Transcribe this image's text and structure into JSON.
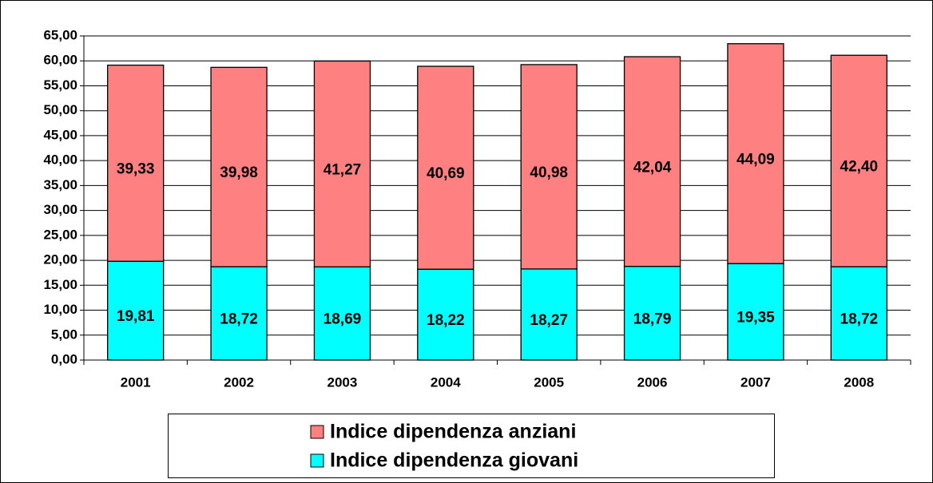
{
  "chart_data": {
    "type": "stacked_bar",
    "categories": [
      "2001",
      "2002",
      "2003",
      "2004",
      "2005",
      "2006",
      "2007",
      "2008"
    ],
    "series": [
      {
        "name": "Indice dipendenza giovani",
        "color": "#00ffff",
        "values": [
          19.81,
          18.72,
          18.69,
          18.22,
          18.27,
          18.79,
          19.35,
          18.72
        ],
        "value_labels": [
          "19,81",
          "18,72",
          "18,69",
          "18,22",
          "18,27",
          "18,79",
          "19,35",
          "18,72"
        ]
      },
      {
        "name": "Indice dipendenza anziani",
        "color": "#ff8080",
        "values": [
          39.33,
          39.98,
          41.27,
          40.69,
          40.98,
          42.04,
          44.09,
          42.4
        ],
        "value_labels": [
          "39,33",
          "39,98",
          "41,27",
          "40,69",
          "40,98",
          "42,04",
          "44,09",
          "42,40"
        ]
      }
    ],
    "ylim": [
      0,
      65
    ],
    "yticks": [
      {
        "value": 0,
        "label": "0,00"
      },
      {
        "value": 5,
        "label": "5,00"
      },
      {
        "value": 10,
        "label": "10,00"
      },
      {
        "value": 15,
        "label": "15,00"
      },
      {
        "value": 20,
        "label": "20,00"
      },
      {
        "value": 25,
        "label": "25,00"
      },
      {
        "value": 30,
        "label": "30,00"
      },
      {
        "value": 35,
        "label": "35,00"
      },
      {
        "value": 40,
        "label": "40,00"
      },
      {
        "value": 45,
        "label": "45,00"
      },
      {
        "value": 50,
        "label": "50,00"
      },
      {
        "value": 55,
        "label": "55,00"
      },
      {
        "value": 60,
        "label": "60,00"
      },
      {
        "value": 65,
        "label": "65,00"
      }
    ],
    "grid": true
  }
}
